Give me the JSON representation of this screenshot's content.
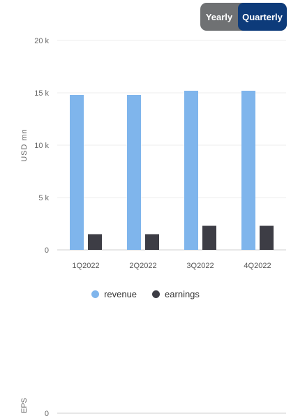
{
  "toggle": {
    "yearly_label": "Yearly",
    "quarterly_label": "Quarterly",
    "selected": "Quarterly"
  },
  "colors": {
    "revenue": "#7fb5ec",
    "earnings": "#3d3d45",
    "toggle_active": "#0d3b7a",
    "toggle_bg": "#6f7173"
  },
  "chart_data": {
    "type": "bar",
    "ylabel": "USD mn",
    "ylim": [
      0,
      20000
    ],
    "yticks": [
      0,
      5000,
      10000,
      15000,
      20000
    ],
    "ytick_labels": [
      "0",
      "5 k",
      "10 k",
      "15 k",
      "20 k"
    ],
    "categories": [
      "1Q2022",
      "2Q2022",
      "3Q2022",
      "4Q2022"
    ],
    "series": [
      {
        "name": "revenue",
        "values": [
          14800,
          14800,
          15200,
          15200
        ]
      },
      {
        "name": "earnings",
        "values": [
          1500,
          1500,
          2300,
          2300
        ]
      }
    ],
    "grid": true,
    "legend": "bottom-center"
  },
  "chart2": {
    "ylabel": "EPS",
    "ytick_labels": [
      "0"
    ]
  }
}
